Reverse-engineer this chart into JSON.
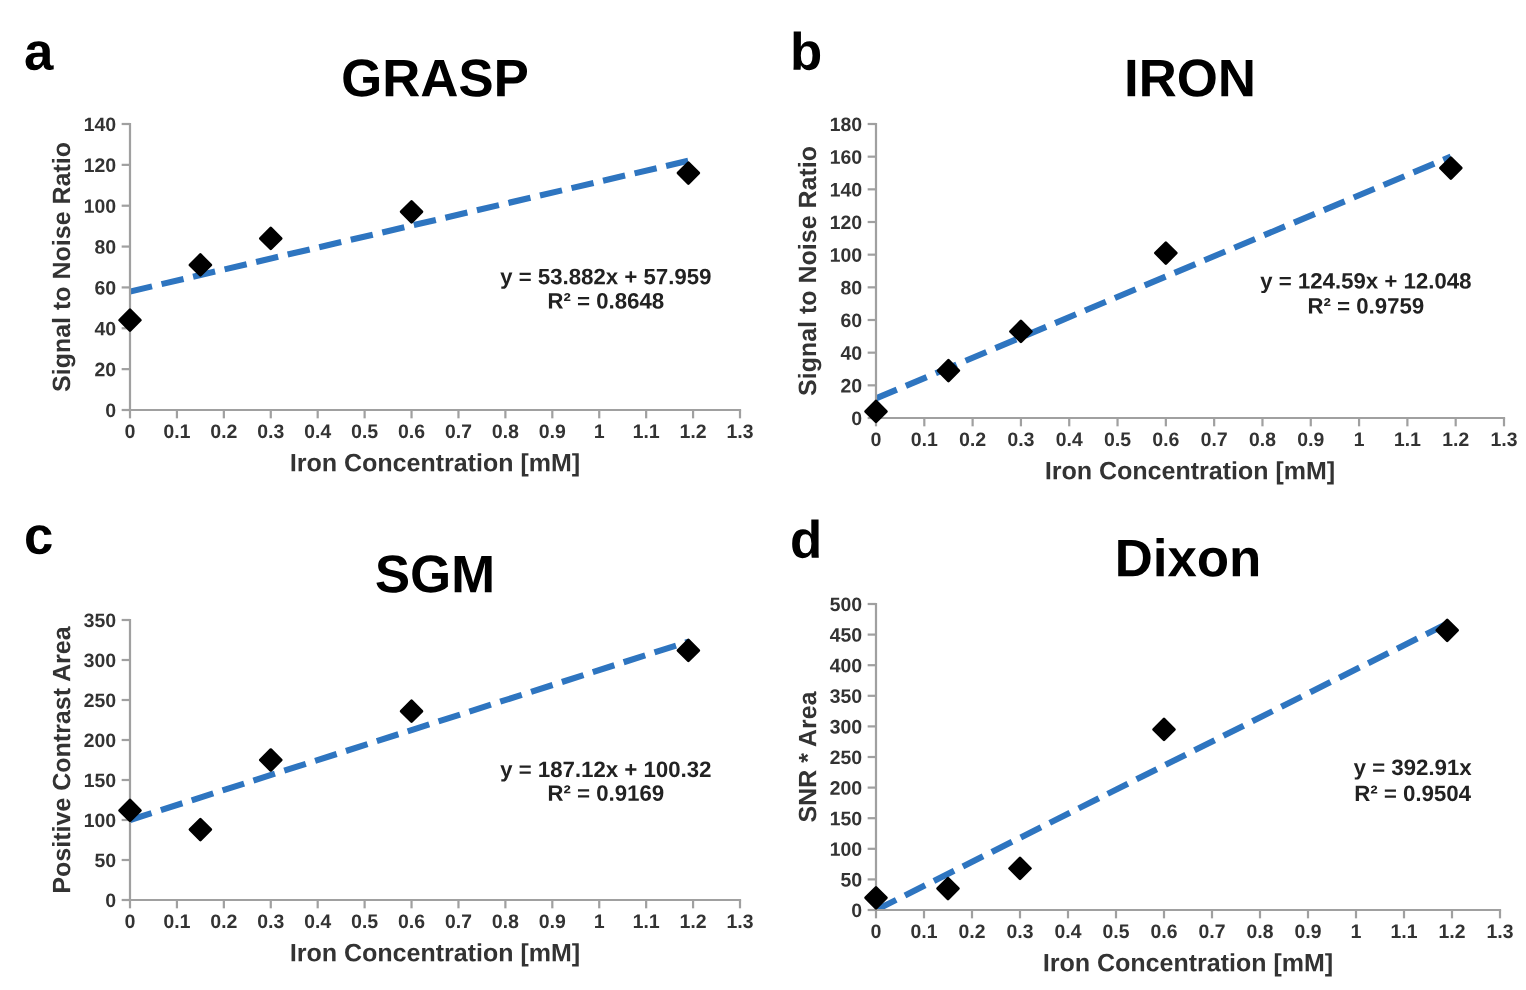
{
  "chart_data": [
    {
      "type": "scatter",
      "title": "GRASP",
      "xlabel": "Iron Concentration [mM]",
      "ylabel": "Signal to Noise Ratio",
      "annotations": [
        "a",
        "y = 53.882x + 57.959",
        "R² = 0.8648"
      ],
      "xlim": [
        0,
        1.3
      ],
      "xticks": [
        0,
        0.1,
        0.2,
        0.3,
        0.4,
        0.5,
        0.6,
        0.7,
        0.8,
        0.9,
        1,
        1.1,
        1.2,
        1.3
      ],
      "ylim": [
        0,
        140
      ],
      "yticks": [
        0,
        20,
        40,
        60,
        80,
        100,
        120,
        140
      ],
      "grid": false,
      "legend": false,
      "series": [
        {
          "color": "#000000",
          "marker": "diamond",
          "x": [
            0,
            0.15,
            0.3,
            0.6,
            1.19
          ],
          "values": [
            44,
            71,
            84,
            97,
            116
          ]
        },
        {
          "type": "line",
          "color": "#2e75c0",
          "line_style": "dashed",
          "marker": "none",
          "x": [
            0,
            1.19
          ],
          "values": [
            58,
            122
          ]
        }
      ]
    },
    {
      "type": "scatter",
      "title": "IRON",
      "xlabel": "Iron Concentration [mM]",
      "ylabel": "Signal to Noise Ratio",
      "annotations": [
        "b",
        "y = 124.59x + 12.048",
        "R² = 0.9759"
      ],
      "xlim": [
        0,
        1.3
      ],
      "xticks": [
        0,
        0.1,
        0.2,
        0.3,
        0.4,
        0.5,
        0.6,
        0.7,
        0.8,
        0.9,
        1,
        1.1,
        1.2,
        1.3
      ],
      "ylim": [
        0,
        180
      ],
      "yticks": [
        0,
        20,
        40,
        60,
        80,
        100,
        120,
        140,
        160,
        180
      ],
      "grid": false,
      "legend": false,
      "series": [
        {
          "color": "#000000",
          "marker": "diamond",
          "x": [
            0,
            0.15,
            0.3,
            0.6,
            1.19
          ],
          "values": [
            4,
            29,
            53,
            101,
            153
          ]
        },
        {
          "type": "line",
          "color": "#2e75c0",
          "line_style": "dashed",
          "marker": "none",
          "x": [
            0,
            1.19
          ],
          "values": [
            12,
            160
          ]
        }
      ]
    },
    {
      "type": "scatter",
      "title": "SGM",
      "xlabel": "Iron Concentration [mM]",
      "ylabel": "Positive Contrast Area",
      "annotations": [
        "c",
        "y = 187.12x + 100.32",
        "R² = 0.9169"
      ],
      "xlim": [
        0,
        1.3
      ],
      "xticks": [
        0,
        0.1,
        0.2,
        0.3,
        0.4,
        0.5,
        0.6,
        0.7,
        0.8,
        0.9,
        1,
        1.1,
        1.2,
        1.3
      ],
      "ylim": [
        0,
        350
      ],
      "yticks": [
        0,
        50,
        100,
        150,
        200,
        250,
        300,
        350
      ],
      "grid": false,
      "legend": false,
      "series": [
        {
          "color": "#000000",
          "marker": "diamond",
          "x": [
            0,
            0.15,
            0.3,
            0.6,
            1.19
          ],
          "values": [
            112,
            88,
            175,
            236,
            312
          ]
        },
        {
          "type": "line",
          "color": "#2e75c0",
          "line_style": "dashed",
          "marker": "none",
          "x": [
            0,
            1.19
          ],
          "values": [
            100,
            323
          ]
        }
      ]
    },
    {
      "type": "scatter",
      "title": "Dixon",
      "xlabel": "Iron Concentration [mM]",
      "ylabel": "SNR * Area",
      "annotations": [
        "d",
        "y = 392.91x",
        "R² = 0.9504"
      ],
      "xlim": [
        0,
        1.3
      ],
      "xticks": [
        0,
        0.1,
        0.2,
        0.3,
        0.4,
        0.5,
        0.6,
        0.7,
        0.8,
        0.9,
        1,
        1.1,
        1.2,
        1.3
      ],
      "ylim": [
        0,
        500
      ],
      "yticks": [
        0,
        50,
        100,
        150,
        200,
        250,
        300,
        350,
        400,
        450,
        500
      ],
      "grid": false,
      "legend": false,
      "series": [
        {
          "color": "#000000",
          "marker": "diamond",
          "x": [
            0,
            0.15,
            0.3,
            0.6,
            1.19
          ],
          "values": [
            20,
            35,
            68,
            295,
            457
          ]
        },
        {
          "type": "line",
          "color": "#2e75c0",
          "line_style": "dashed",
          "marker": "none",
          "x": [
            0,
            1.19
          ],
          "values": [
            0,
            468
          ]
        }
      ]
    }
  ]
}
